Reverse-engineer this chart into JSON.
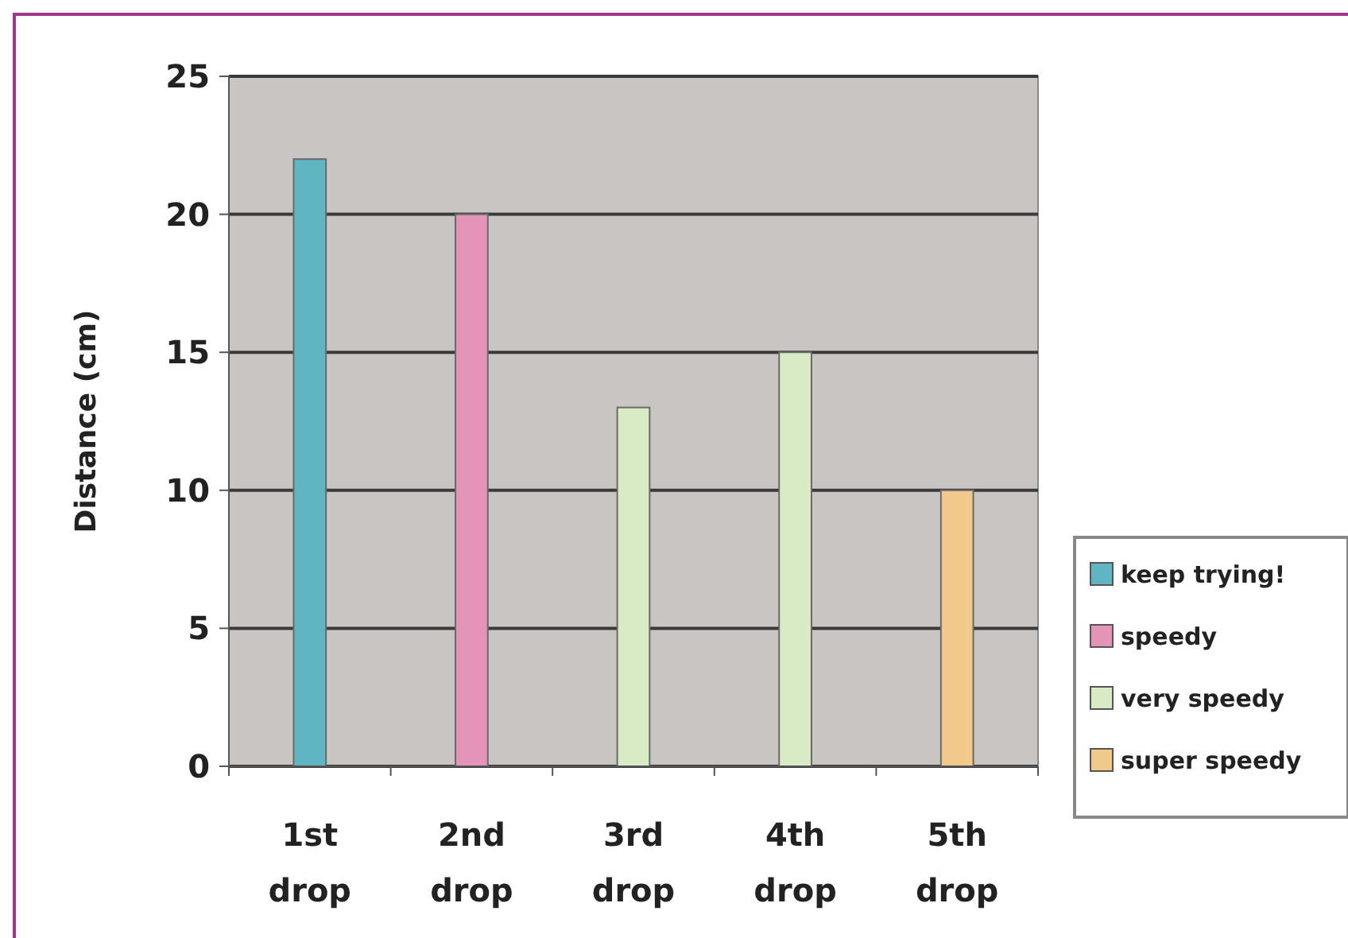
{
  "chart_data": {
    "type": "bar",
    "ylabel": "Distance  (cm)",
    "categories": [
      "1st drop",
      "2nd drop",
      "3rd drop",
      "4th drop",
      "5th drop"
    ],
    "series": [
      {
        "name": "keep trying!",
        "color": "#5fb5c2",
        "values": [
          22,
          null,
          null,
          null,
          null
        ]
      },
      {
        "name": "speedy",
        "color": "#e493b9",
        "values": [
          null,
          20,
          null,
          null,
          null
        ]
      },
      {
        "name": "very speedy",
        "color": "#d9ebc4",
        "values": [
          null,
          null,
          13,
          15,
          null
        ]
      },
      {
        "name": "super speedy",
        "color": "#f1c98a",
        "values": [
          null,
          null,
          null,
          null,
          10
        ]
      }
    ],
    "stacked": true,
    "ylim": [
      0,
      25
    ],
    "yticks": [
      0,
      5,
      10,
      15,
      20,
      25
    ],
    "grid": "y",
    "legend": "right"
  }
}
